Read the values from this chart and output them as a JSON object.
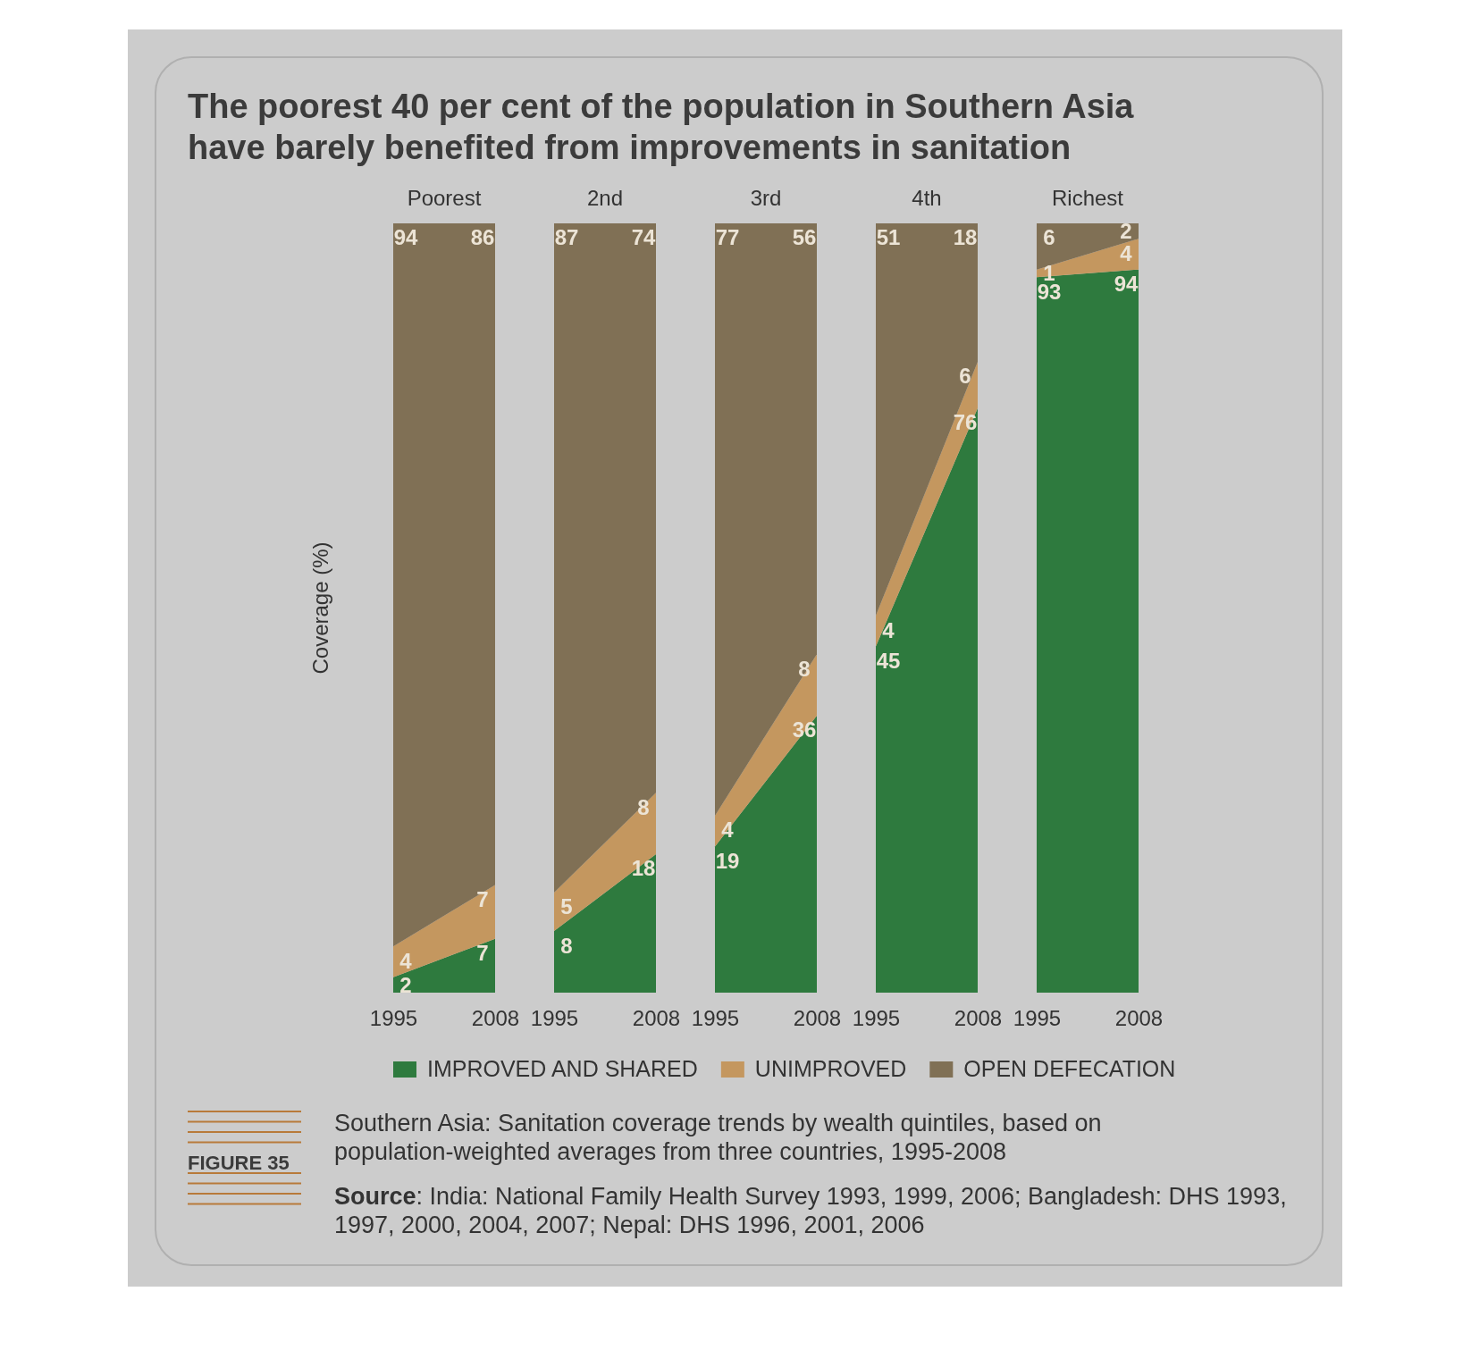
{
  "chart_data": [
    {
      "type": "area",
      "title": "Poorest",
      "ylabel": "Coverage (%)",
      "categories": [
        "1995",
        "2008"
      ],
      "stacked": true,
      "data_labels": true,
      "legend": "bottom",
      "annotations": [
        "The poorest 40 per cent of the population in Southern Asia have barely benefited from improvements in sanitation",
        "FIGURE 35",
        "Southern Asia: Sanitation coverage trends by wealth quintiles, based on population-weighted averages from three countries, 1995-2008",
        "Source: India: National Family Health Survey 1993, 1999, 2006; Bangladesh: DHS 1993, 1997, 2000, 2004, 2007; Nepal: DHS 1996, 2001, 2006"
      ],
      "series": [
        {
          "name": "IMPROVED AND SHARED",
          "color": "#2e7a3e",
          "values": [
            2,
            7
          ]
        },
        {
          "name": "UNIMPROVED",
          "color": "#c4975f",
          "values": [
            4,
            7
          ]
        },
        {
          "name": "OPEN DEFECATION",
          "color": "#807055",
          "values": [
            94,
            86
          ]
        }
      ]
    },
    {
      "type": "area",
      "title": "2nd",
      "categories": [
        "1995",
        "2008"
      ],
      "stacked": true,
      "data_labels": true,
      "series": [
        {
          "color": "#2e7a3e",
          "values": [
            8,
            18
          ]
        },
        {
          "color": "#c4975f",
          "values": [
            5,
            8
          ]
        },
        {
          "color": "#807055",
          "values": [
            87,
            74
          ]
        }
      ]
    },
    {
      "type": "area",
      "title": "3rd",
      "categories": [
        "1995",
        "2008"
      ],
      "stacked": true,
      "data_labels": true,
      "series": [
        {
          "color": "#2e7a3e",
          "values": [
            19,
            36
          ]
        },
        {
          "color": "#c4975f",
          "values": [
            4,
            8
          ]
        },
        {
          "color": "#807055",
          "values": [
            77,
            56
          ]
        }
      ]
    },
    {
      "type": "area",
      "title": "4th",
      "categories": [
        "1995",
        "2008"
      ],
      "stacked": true,
      "data_labels": true,
      "series": [
        {
          "color": "#2e7a3e",
          "values": [
            45,
            76
          ]
        },
        {
          "color": "#c4975f",
          "values": [
            4,
            6
          ]
        },
        {
          "color": "#807055",
          "values": [
            51,
            18
          ]
        }
      ]
    },
    {
      "type": "area",
      "title": "Richest",
      "categories": [
        "1995",
        "2008"
      ],
      "stacked": true,
      "data_labels": true,
      "series": [
        {
          "color": "#2e7a3e",
          "values": [
            93,
            94
          ]
        },
        {
          "color": "#c4975f",
          "values": [
            1,
            4
          ]
        },
        {
          "color": "#807055",
          "values": [
            6,
            2
          ]
        }
      ]
    }
  ]
}
